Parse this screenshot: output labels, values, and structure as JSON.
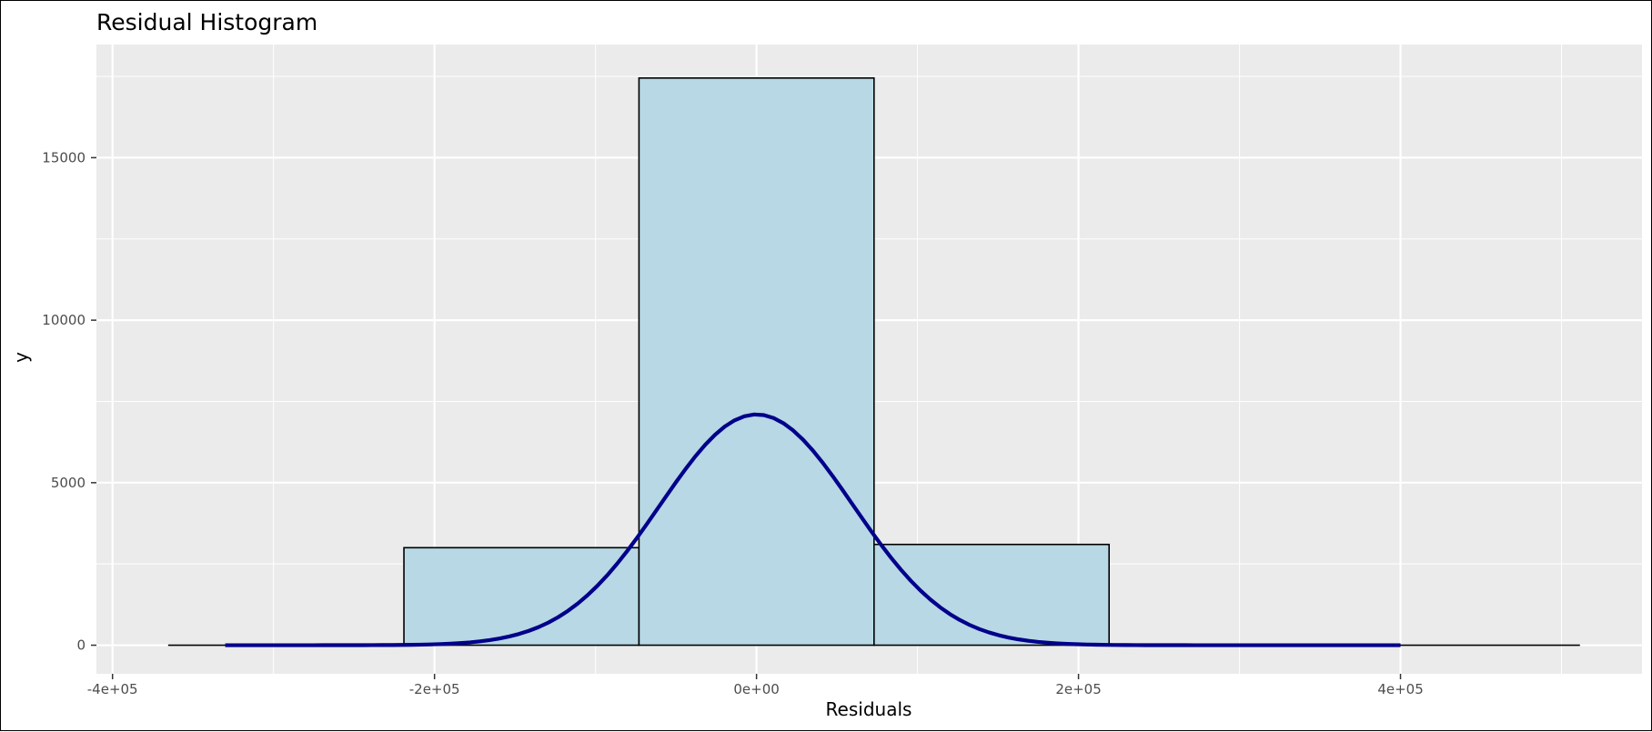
{
  "chart_data": {
    "type": "bar",
    "title": "Residual Histogram",
    "xlabel": "Residuals",
    "ylabel": "y",
    "xlim": [
      -410000,
      550000
    ],
    "ylim": [
      -880,
      18480
    ],
    "x_ticks": [
      {
        "value": -400000,
        "label": "-4e+05"
      },
      {
        "value": -200000,
        "label": "-2e+05"
      },
      {
        "value": 0,
        "label": "0e+00"
      },
      {
        "value": 200000,
        "label": "2e+05"
      },
      {
        "value": 400000,
        "label": "4e+05"
      }
    ],
    "y_ticks": [
      {
        "value": 0,
        "label": "0"
      },
      {
        "value": 5000,
        "label": "5000"
      },
      {
        "value": 10000,
        "label": "10000"
      },
      {
        "value": 15000,
        "label": "15000"
      }
    ],
    "grid": true,
    "bins": [
      {
        "x0": -365000,
        "x1": -219000,
        "count": 0
      },
      {
        "x0": -219000,
        "x1": -73000,
        "count": 3000
      },
      {
        "x0": -73000,
        "x1": 73000,
        "count": 17450
      },
      {
        "x0": 73000,
        "x1": 219000,
        "count": 3100
      },
      {
        "x0": 219000,
        "x1": 365000,
        "count": 30
      },
      {
        "x0": 365000,
        "x1": 511000,
        "count": 0
      }
    ],
    "series": [
      {
        "type": "normal-density-curve",
        "mean": 0,
        "sd": 60000,
        "peak": 7100,
        "x_range": [
          -330000,
          400000
        ]
      }
    ],
    "colors": {
      "panel": "#ebebeb",
      "grid_major": "#ffffff",
      "bar_fill": "#b7d8e4",
      "bar_stroke": "#000000",
      "curve": "#00008b"
    }
  }
}
